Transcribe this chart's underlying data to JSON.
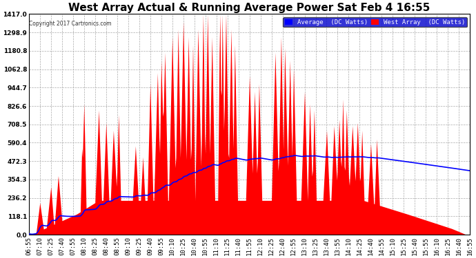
{
  "title": "West Array Actual & Running Average Power Sat Feb 4 16:55",
  "copyright": "Copyright 2017 Cartronics.com",
  "legend_labels": [
    "Average  (DC Watts)",
    "West Array  (DC Watts)"
  ],
  "legend_colors": [
    "#0000ff",
    "#ff0000"
  ],
  "plot_bg_color": "#ffffff",
  "grid_color": "#aaaaaa",
  "y_max": 1417.0,
  "y_min": 0.0,
  "y_ticks": [
    0.0,
    118.1,
    236.2,
    354.3,
    472.3,
    590.4,
    708.5,
    826.6,
    944.7,
    1062.8,
    1180.8,
    1298.9,
    1417.0
  ],
  "x_start_min": 415,
  "x_end_min": 1015,
  "x_tick_interval": 15,
  "area_color": "#ff0000",
  "line_color": "#0000ff",
  "title_color": "#000000",
  "title_fontsize": 11,
  "tick_fontsize": 6.5,
  "tick_color": "#000000",
  "outer_bg": "#ffffff",
  "legend_bg": "#0000cc",
  "legend_text_color": "#ffffff"
}
